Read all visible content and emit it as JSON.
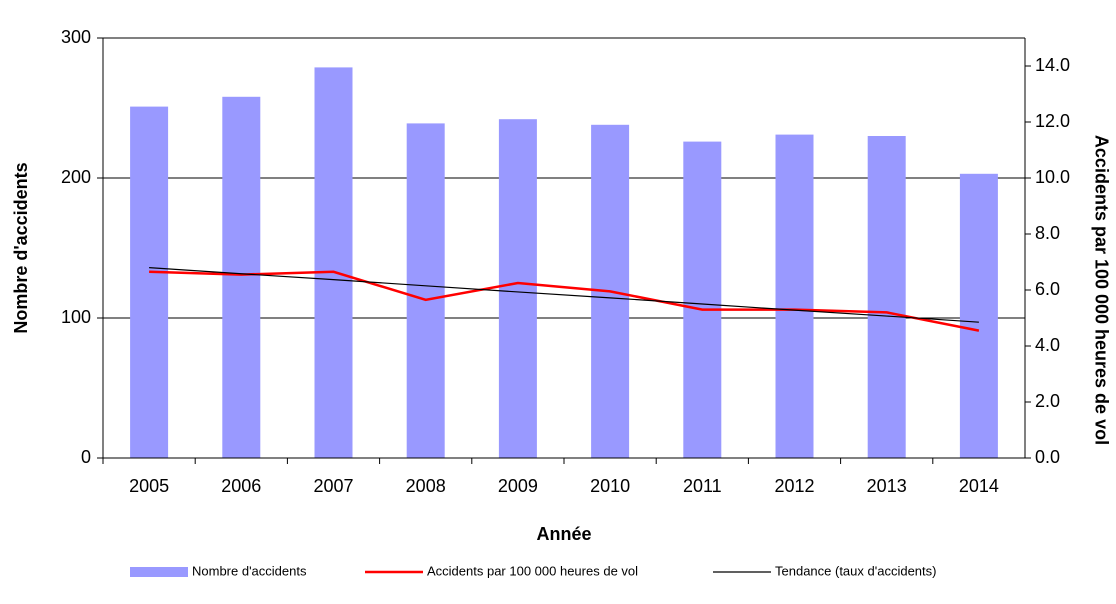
{
  "chart_data": {
    "type": "bar-line",
    "xlabel": "Année",
    "ylabel": "Nombre d'accidents",
    "y2label": "Accidents par 100 000 heures de vol",
    "categories": [
      "2005",
      "2006",
      "2007",
      "2008",
      "2009",
      "2010",
      "2011",
      "2012",
      "2013",
      "2014"
    ],
    "series": [
      {
        "name": "Nombre d'accidents",
        "type": "bar",
        "color": "#9999ff",
        "values": [
          251,
          258,
          279,
          239,
          242,
          238,
          226,
          231,
          230,
          203
        ]
      },
      {
        "name": "Accidents par 100 000 heures de vol",
        "type": "line",
        "axis": "y2",
        "color": "#ff0000",
        "values": [
          6.65,
          6.55,
          6.65,
          5.65,
          6.25,
          5.95,
          5.3,
          5.3,
          5.2,
          4.55
        ]
      },
      {
        "name": "Tendance (taux d'accidents)",
        "type": "line",
        "axis": "y2",
        "color": "#000000",
        "values": [
          6.8,
          6.58,
          6.37,
          6.15,
          5.93,
          5.72,
          5.5,
          5.28,
          5.07,
          4.85
        ]
      }
    ],
    "ylim": [
      0,
      300
    ],
    "yticks": [
      0,
      100,
      200,
      300
    ],
    "y2lim": [
      0,
      15
    ],
    "y2ticks": [
      {
        "value": 0,
        "label": "0.0"
      },
      {
        "value": 2,
        "label": "2.0"
      },
      {
        "value": 4,
        "label": "4.0"
      },
      {
        "value": 6,
        "label": "6.0"
      },
      {
        "value": 8,
        "label": "8.0"
      },
      {
        "value": 10,
        "label": "10.0"
      },
      {
        "value": 12,
        "label": "12.0"
      },
      {
        "value": 14,
        "label": "14.0"
      }
    ],
    "grid": true
  }
}
